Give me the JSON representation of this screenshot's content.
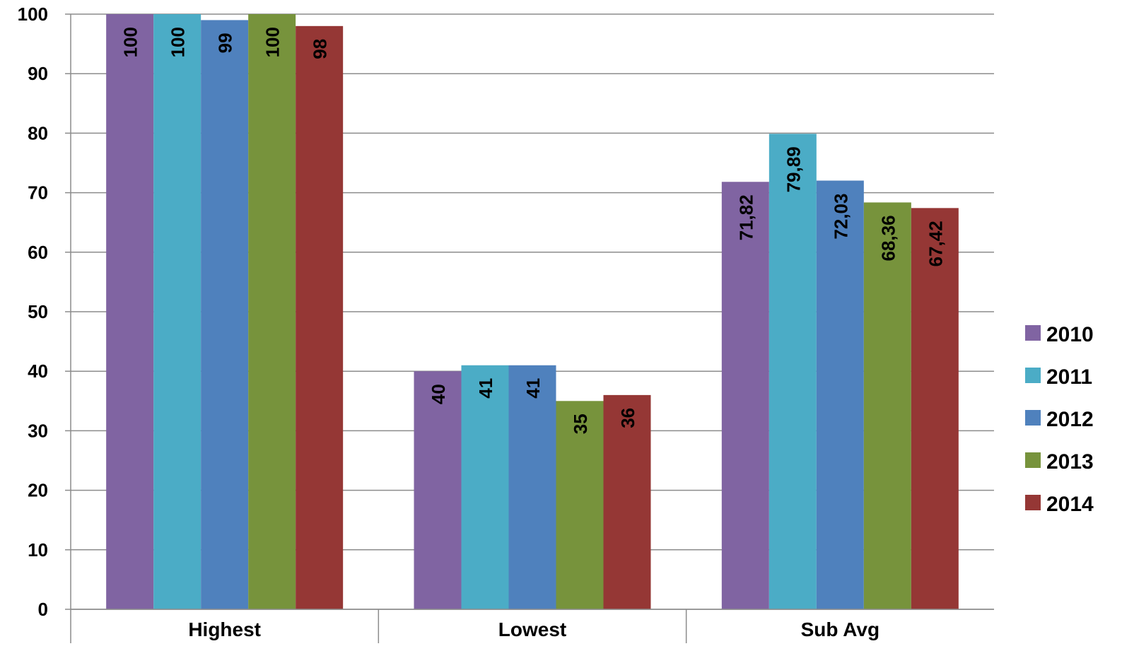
{
  "chart_data": {
    "type": "bar",
    "categories": [
      "Highest",
      "Lowest",
      "Sub Avg"
    ],
    "series": [
      {
        "name": "2010",
        "values": [
          100,
          40,
          71.82
        ],
        "labels": [
          "100",
          "40",
          "71,82"
        ],
        "color": "#8064A2"
      },
      {
        "name": "2011",
        "values": [
          100,
          41,
          79.89
        ],
        "labels": [
          "100",
          "41",
          "79,89"
        ],
        "color": "#4BACC6"
      },
      {
        "name": "2012",
        "values": [
          99,
          41,
          72.03
        ],
        "labels": [
          "99",
          "41",
          "72,03"
        ],
        "color": "#4F81BD"
      },
      {
        "name": "2013",
        "values": [
          100,
          35,
          68.36
        ],
        "labels": [
          "100",
          "35",
          "68,36"
        ],
        "color": "#77933C"
      },
      {
        "name": "2014",
        "values": [
          98,
          36,
          67.42
        ],
        "labels": [
          "98",
          "36",
          "67,42"
        ],
        "color": "#953735"
      }
    ],
    "ylim": [
      0,
      100
    ],
    "yticks": [
      "0",
      "10",
      "20",
      "30",
      "40",
      "50",
      "60",
      "70",
      "80",
      "90",
      "100"
    ],
    "grid": true,
    "legend": "right",
    "title": "",
    "xlabel": "",
    "ylabel": ""
  }
}
